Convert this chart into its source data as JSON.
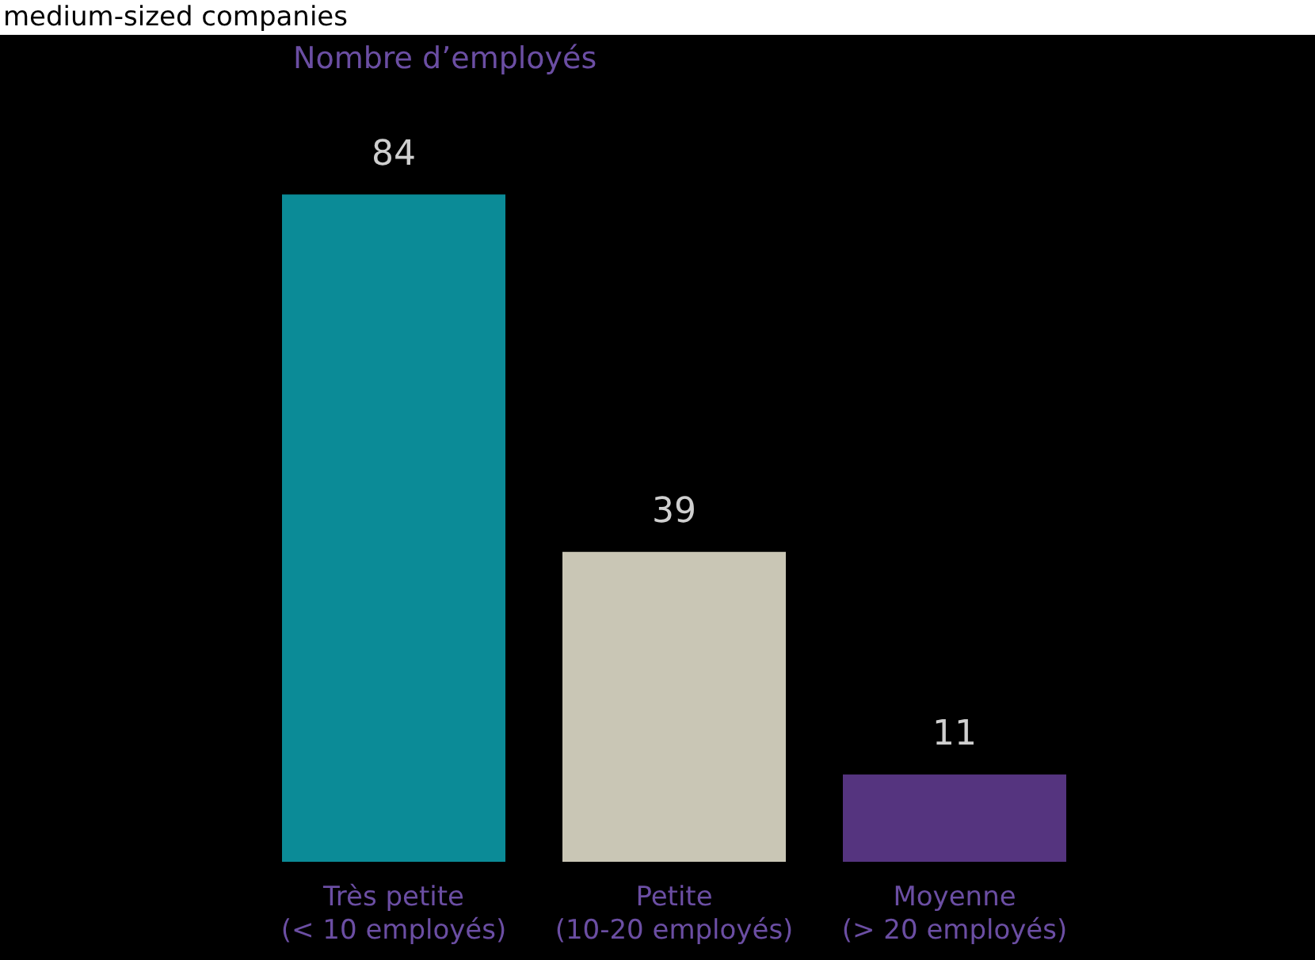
{
  "chart_data": {
    "type": "bar",
    "title": "Nombre d’employés",
    "categories": [
      "Très petite\n(< 10 employés)",
      "Petite\n(10-20 employés)",
      "Moyenne\n(> 20 employés)"
    ],
    "values": [
      84,
      39,
      11
    ],
    "colors": [
      "#0b8b97",
      "#c9c6b5",
      "#55347f"
    ],
    "data_labels": true,
    "annotations": [
      "medium-sized companies"
    ]
  }
}
